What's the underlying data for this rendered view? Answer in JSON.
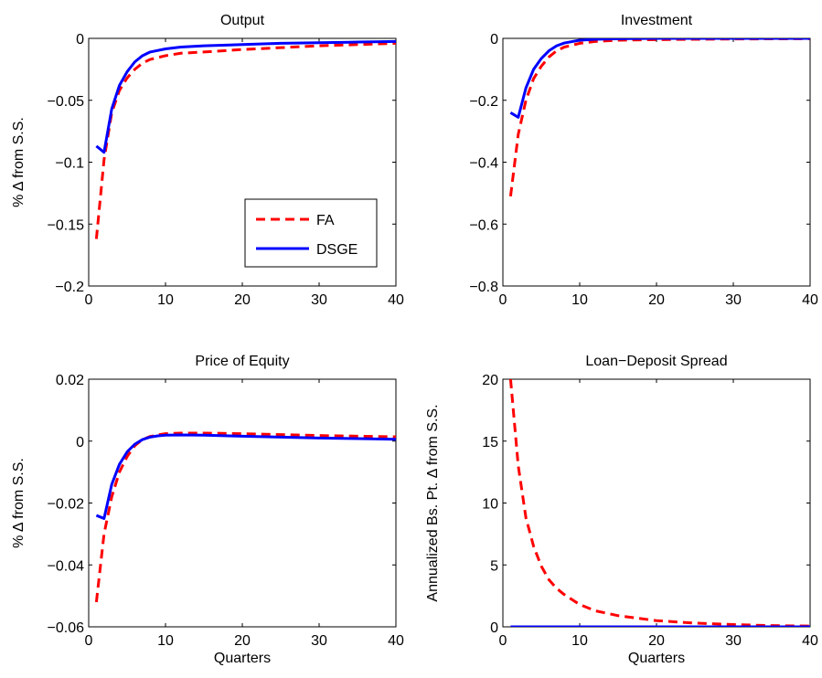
{
  "figure": {
    "legend": {
      "position": "bottom-right of first panel",
      "entries": [
        "FA",
        "DSGE"
      ]
    }
  },
  "colors": {
    "FA": "#ff0000",
    "DSGE": "#0000ff",
    "axes": "#000000"
  },
  "chart_data": [
    {
      "type": "line",
      "title": "Output",
      "xlabel": "",
      "ylabel": "% Δ from S.S.",
      "xlim": [
        0,
        40
      ],
      "ylim": [
        -0.2,
        0
      ],
      "xticks": [
        0,
        10,
        20,
        30,
        40
      ],
      "yticks": [
        -0.2,
        -0.15,
        -0.1,
        -0.05,
        0
      ],
      "xtick_labels": [
        "0",
        "10",
        "20",
        "30",
        "40"
      ],
      "ytick_labels": [
        "−0.2",
        "−0.15",
        "−0.1",
        "−0.05",
        "0"
      ],
      "grid": false,
      "legend": {
        "position": "bottom-right",
        "entries": [
          "FA",
          "DSGE"
        ]
      },
      "series": [
        {
          "name": "FA",
          "style": "dashed",
          "color": "#ff0000",
          "x": [
            1,
            2,
            3,
            4,
            5,
            6,
            7,
            8,
            10,
            12,
            15,
            20,
            25,
            30,
            35,
            40
          ],
          "y": [
            -0.162,
            -0.098,
            -0.06,
            -0.042,
            -0.032,
            -0.025,
            -0.02,
            -0.017,
            -0.014,
            -0.012,
            -0.011,
            -0.009,
            -0.0075,
            -0.006,
            -0.005,
            -0.004
          ]
        },
        {
          "name": "DSGE",
          "style": "solid",
          "color": "#0000ff",
          "x": [
            1,
            2,
            3,
            4,
            5,
            6,
            7,
            8,
            10,
            12,
            15,
            20,
            25,
            30,
            35,
            40
          ],
          "y": [
            -0.087,
            -0.092,
            -0.057,
            -0.038,
            -0.027,
            -0.019,
            -0.014,
            -0.011,
            -0.0085,
            -0.007,
            -0.006,
            -0.005,
            -0.004,
            -0.0035,
            -0.003,
            -0.0025
          ]
        }
      ]
    },
    {
      "type": "line",
      "title": "Investment",
      "xlabel": "",
      "ylabel": "",
      "xlim": [
        0,
        40
      ],
      "ylim": [
        -0.8,
        0
      ],
      "xticks": [
        0,
        10,
        20,
        30,
        40
      ],
      "yticks": [
        -0.8,
        -0.6,
        -0.4,
        -0.2,
        0
      ],
      "xtick_labels": [
        "0",
        "10",
        "20",
        "30",
        "40"
      ],
      "ytick_labels": [
        "−0.8",
        "−0.6",
        "−0.4",
        "−0.2",
        "0"
      ],
      "grid": false,
      "series": [
        {
          "name": "FA",
          "style": "dashed",
          "color": "#ff0000",
          "x": [
            1,
            2,
            3,
            4,
            5,
            6,
            7,
            8,
            10,
            12,
            15,
            20,
            30,
            40
          ],
          "y": [
            -0.51,
            -0.31,
            -0.2,
            -0.13,
            -0.09,
            -0.06,
            -0.04,
            -0.028,
            -0.016,
            -0.01,
            -0.006,
            -0.004,
            -0.002,
            -0.001
          ]
        },
        {
          "name": "DSGE",
          "style": "solid",
          "color": "#0000ff",
          "x": [
            1,
            2,
            3,
            4,
            5,
            6,
            7,
            8,
            10,
            12,
            15,
            20,
            30,
            40
          ],
          "y": [
            -0.24,
            -0.255,
            -0.16,
            -0.1,
            -0.065,
            -0.04,
            -0.024,
            -0.015,
            -0.006,
            -0.003,
            -0.001,
            0,
            0,
            0
          ]
        }
      ]
    },
    {
      "type": "line",
      "title": "Price of Equity",
      "xlabel": "Quarters",
      "ylabel": "% Δ from S.S.",
      "xlim": [
        0,
        40
      ],
      "ylim": [
        -0.06,
        0.02
      ],
      "xticks": [
        0,
        10,
        20,
        30,
        40
      ],
      "yticks": [
        -0.06,
        -0.04,
        -0.02,
        0,
        0.02
      ],
      "xtick_labels": [
        "0",
        "10",
        "20",
        "30",
        "40"
      ],
      "ytick_labels": [
        "−0.06",
        "−0.04",
        "−0.02",
        "0",
        "0.02"
      ],
      "grid": false,
      "series": [
        {
          "name": "FA",
          "style": "dashed",
          "color": "#ff0000",
          "x": [
            1,
            2,
            3,
            4,
            5,
            6,
            7,
            8,
            9,
            10,
            12,
            15,
            20,
            25,
            30,
            35,
            40
          ],
          "y": [
            -0.052,
            -0.03,
            -0.018,
            -0.01,
            -0.005,
            -0.0015,
            0.0005,
            0.0015,
            0.002,
            0.0024,
            0.0026,
            0.0026,
            0.0024,
            0.0021,
            0.0018,
            0.0016,
            0.0014
          ]
        },
        {
          "name": "DSGE",
          "style": "solid",
          "color": "#0000ff",
          "x": [
            1,
            2,
            3,
            4,
            5,
            6,
            7,
            8,
            9,
            10,
            12,
            15,
            20,
            25,
            30,
            35,
            40
          ],
          "y": [
            -0.024,
            -0.025,
            -0.014,
            -0.0075,
            -0.0035,
            -0.001,
            0.0005,
            0.0013,
            0.0017,
            0.0019,
            0.002,
            0.0019,
            0.0016,
            0.0013,
            0.001,
            0.0008,
            0.0006
          ]
        }
      ]
    },
    {
      "type": "line",
      "title": "Loan−Deposit Spread",
      "xlabel": "Quarters",
      "ylabel": "Annualized Bs. Pt. Δ from S.S.",
      "xlim": [
        0,
        40
      ],
      "ylim": [
        0,
        20
      ],
      "xticks": [
        0,
        10,
        20,
        30,
        40
      ],
      "yticks": [
        0,
        5,
        10,
        15,
        20
      ],
      "xtick_labels": [
        "0",
        "10",
        "20",
        "30",
        "40"
      ],
      "ytick_labels": [
        "0",
        "5",
        "10",
        "15",
        "20"
      ],
      "grid": false,
      "series": [
        {
          "name": "FA",
          "style": "dashed",
          "color": "#ff0000",
          "x": [
            1,
            2,
            3,
            4,
            5,
            6,
            7,
            8,
            10,
            12,
            15,
            20,
            25,
            30,
            35,
            40
          ],
          "y": [
            20.0,
            13.0,
            8.8,
            6.5,
            4.9,
            3.8,
            3.1,
            2.6,
            1.8,
            1.3,
            0.9,
            0.5,
            0.3,
            0.18,
            0.1,
            0.06
          ]
        },
        {
          "name": "DSGE",
          "style": "solid",
          "color": "#0000ff",
          "x": [
            1,
            40
          ],
          "y": [
            0,
            0
          ]
        }
      ]
    }
  ]
}
